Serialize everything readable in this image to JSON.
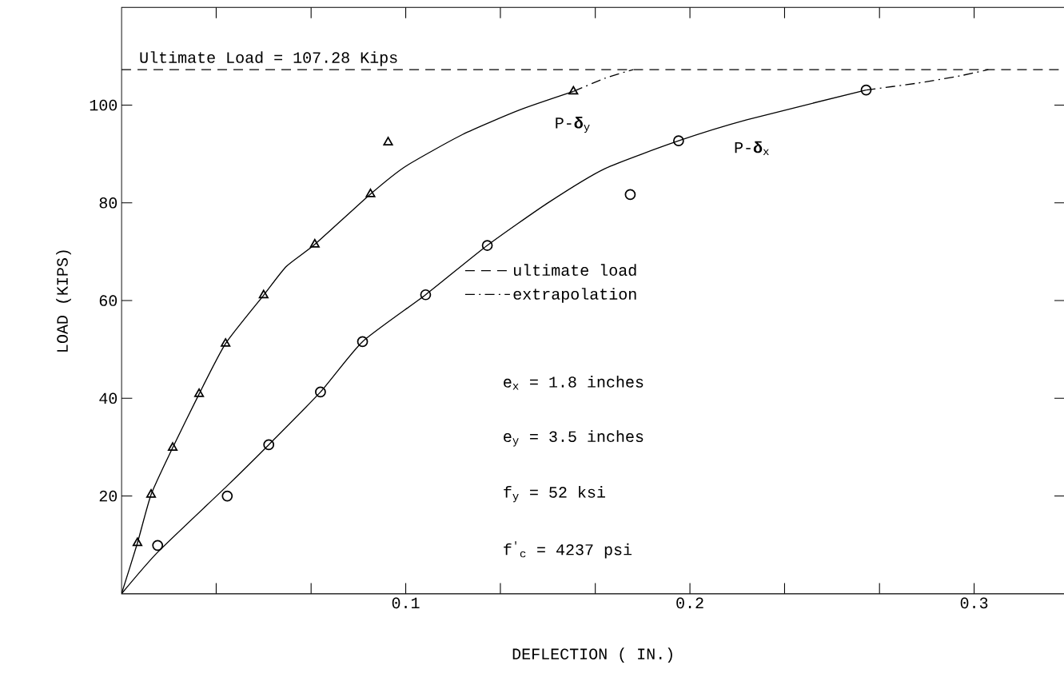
{
  "chart_data": {
    "type": "line",
    "xlabel": "DEFLECTION ( IN.)",
    "ylabel": "LOAD (KIPS)",
    "xlim": [
      0,
      0.332
    ],
    "ylim": [
      0,
      120
    ],
    "xticks": [
      {
        "value": 0.0333,
        "label": null
      },
      {
        "value": 0.0667,
        "label": null
      },
      {
        "value": 0.1,
        "label": "0.1"
      },
      {
        "value": 0.1333,
        "label": null
      },
      {
        "value": 0.1667,
        "label": null
      },
      {
        "value": 0.2,
        "label": "0.2"
      },
      {
        "value": 0.2333,
        "label": null
      },
      {
        "value": 0.2667,
        "label": null
      },
      {
        "value": 0.3,
        "label": "0.3"
      }
    ],
    "yticks": [
      20,
      40,
      60,
      80,
      100
    ],
    "legend": "center",
    "series": [
      {
        "type": "scatter",
        "marker": "triangle",
        "color": "#000000",
        "x": [
          0.0056,
          0.0104,
          0.018,
          0.0273,
          0.0366,
          0.05,
          0.068,
          0.0876,
          0.0938,
          0.159
        ],
        "values": [
          10.4,
          20.3,
          29.9,
          40.9,
          51.2,
          61.1,
          71.5,
          81.8,
          92.4,
          102.8
        ]
      },
      {
        "type": "scatter",
        "marker": "circle",
        "color": "#000000",
        "x": [
          0.0127,
          0.0372,
          0.0518,
          0.07,
          0.0848,
          0.107,
          0.1287,
          0.179,
          0.196,
          0.262
        ],
        "values": [
          9.9,
          20.0,
          30.5,
          41.3,
          51.6,
          61.2,
          71.3,
          81.7,
          92.7,
          103.1
        ]
      },
      {
        "marker": "none",
        "line_style": "solid",
        "color": "#000000",
        "x": [
          0,
          0.0056,
          0.0104,
          0.018,
          0.0273,
          0.0366,
          0.05,
          0.058,
          0.068,
          0.0876,
          0.1,
          0.12,
          0.14,
          0.159
        ],
        "values": [
          0,
          10.4,
          20.3,
          29.9,
          40.9,
          51.2,
          61.1,
          67,
          71.5,
          81.8,
          87.5,
          94,
          99,
          102.8
        ]
      },
      {
        "marker": "none",
        "line_style": "solid",
        "color": "#000000",
        "x": [
          0,
          0.0127,
          0.037,
          0.0518,
          0.07,
          0.0848,
          0.107,
          0.1287,
          0.15,
          0.17,
          0.196,
          0.22,
          0.262
        ],
        "values": [
          0,
          8.5,
          22,
          30.5,
          41.3,
          51.6,
          61.2,
          71.3,
          80,
          87,
          92.7,
          97,
          103.1
        ]
      },
      {
        "name": "ultimate load",
        "marker": "none",
        "line_style": "dashed",
        "color": "#000000",
        "x": [
          0,
          0.332
        ],
        "values": [
          107.28,
          107.28
        ]
      },
      {
        "name": "extrapolation",
        "marker": "none",
        "line_style": "dashdot",
        "color": "#000000",
        "x": [
          0.159,
          0.17,
          0.18,
          0.2,
          0.262,
          0.28,
          0.295,
          0.305
        ],
        "values": [
          102.8,
          105.5,
          107.28,
          null,
          103.1,
          104.5,
          106,
          107.28
        ]
      }
    ],
    "annotations": [
      {
        "text": "Ultimate Load = 107.28 Kips",
        "x": 0.005,
        "y": 107.28
      },
      "P-**δ**$_{y}$",
      "P-**δ**$_{x}$",
      "e$_{x}$ = 1.8 inches",
      "e$_{y}$ = 3.5 inches",
      "f$_{y}$ = 52 ksi",
      "f$^{'}$$_{c}$ = 4237 psi"
    ]
  }
}
